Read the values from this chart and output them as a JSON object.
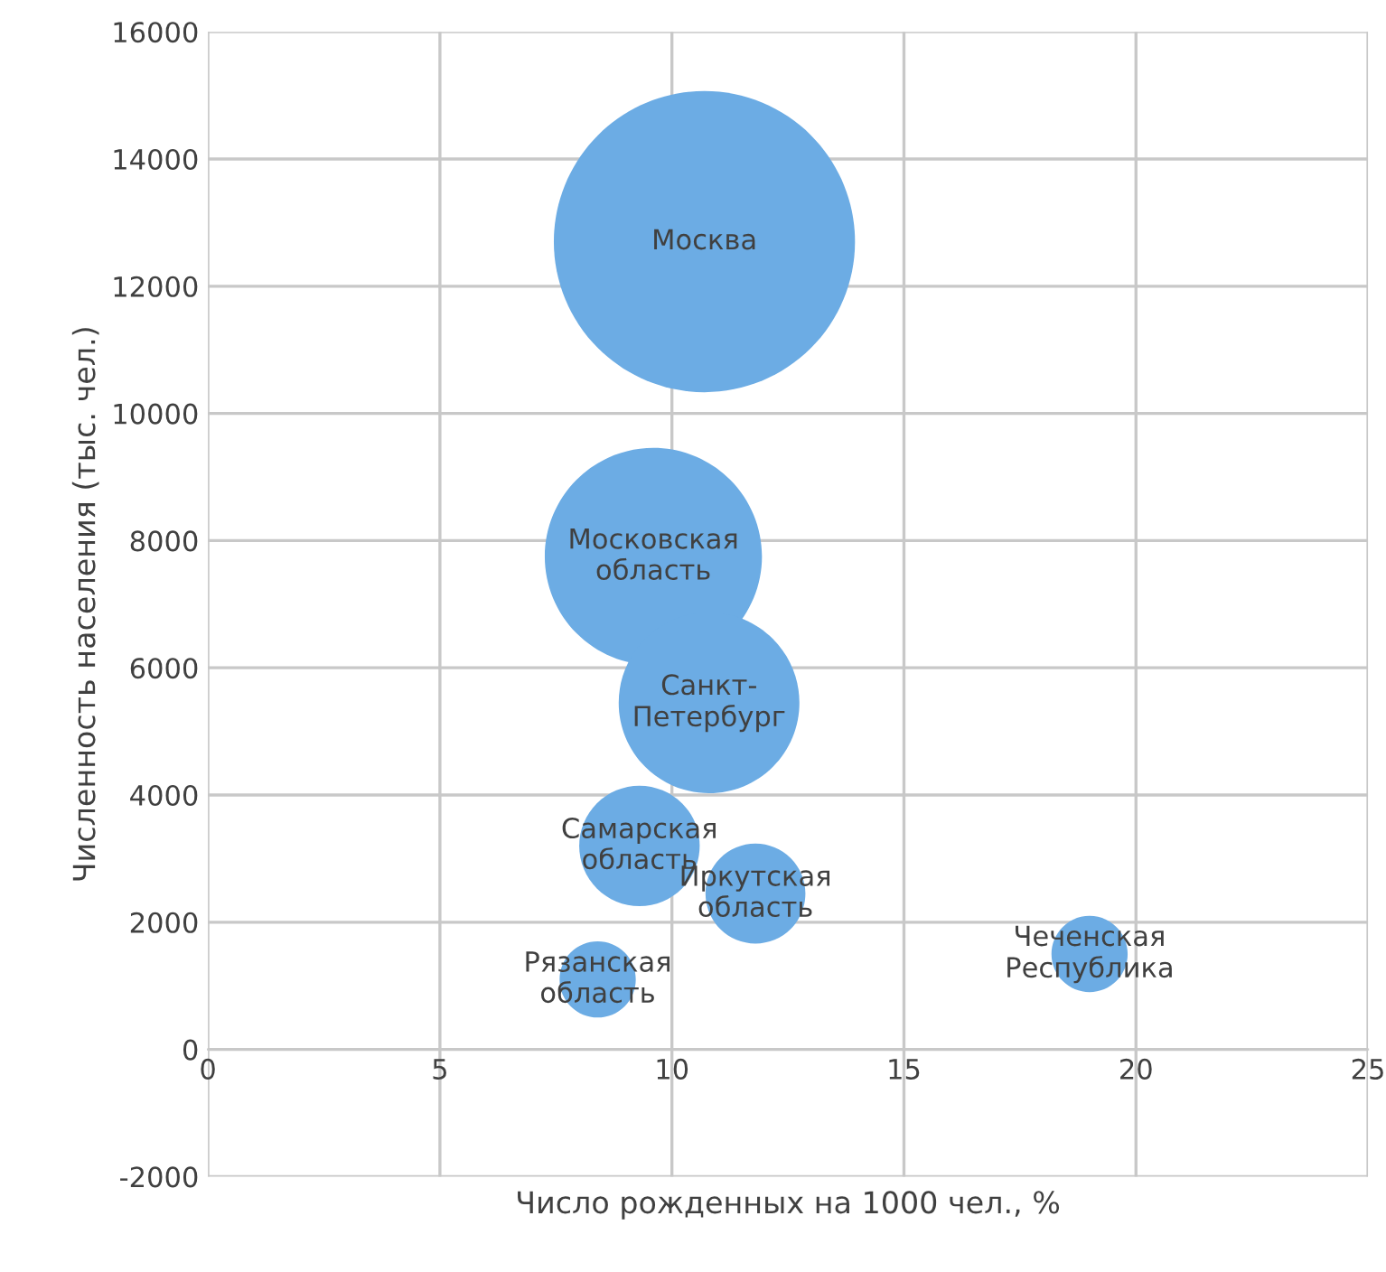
{
  "chart_data": {
    "type": "bubble",
    "xlabel": "Число рожденных на 1000 чел., %",
    "ylabel": "Численность населения (тыс. чел.)",
    "xlim": [
      0,
      25
    ],
    "xticks": [
      0,
      5,
      10,
      15,
      20,
      25
    ],
    "ylim": [
      -2000,
      16000
    ],
    "yticks": [
      -2000,
      0,
      2000,
      4000,
      6000,
      8000,
      10000,
      12000,
      14000,
      16000
    ],
    "grid": true,
    "series": [
      {
        "name": "Москва",
        "color": "#6cace4",
        "x": [
          10.7
        ],
        "values": [
          12700
        ],
        "sizes": [
          1
        ]
      },
      {
        "name": "Московская\nобласть",
        "color": "#6cace4",
        "x": [
          9.6
        ],
        "values": [
          7750
        ],
        "sizes": [
          0.52
        ]
      },
      {
        "name": "Санкт-\nПетербург",
        "color": "#6cace4",
        "x": [
          10.8
        ],
        "values": [
          5450
        ],
        "sizes": [
          0.36
        ]
      },
      {
        "name": "Самарская\nобласть",
        "color": "#6cace4",
        "x": [
          9.3
        ],
        "values": [
          3200
        ],
        "sizes": [
          0.16
        ]
      },
      {
        "name": "Иркутская\nобласть",
        "color": "#6cace4",
        "x": [
          11.8
        ],
        "values": [
          2450
        ],
        "sizes": [
          0.11
        ]
      },
      {
        "name": "Рязанская\nобласть",
        "color": "#6cace4",
        "x": [
          8.4
        ],
        "values": [
          1100
        ],
        "sizes": [
          0.064
        ]
      },
      {
        "name": "Чеченская\nРеспублика",
        "color": "#6cace4",
        "x": [
          19.0
        ],
        "values": [
          1500
        ],
        "sizes": [
          0.064
        ]
      }
    ]
  }
}
